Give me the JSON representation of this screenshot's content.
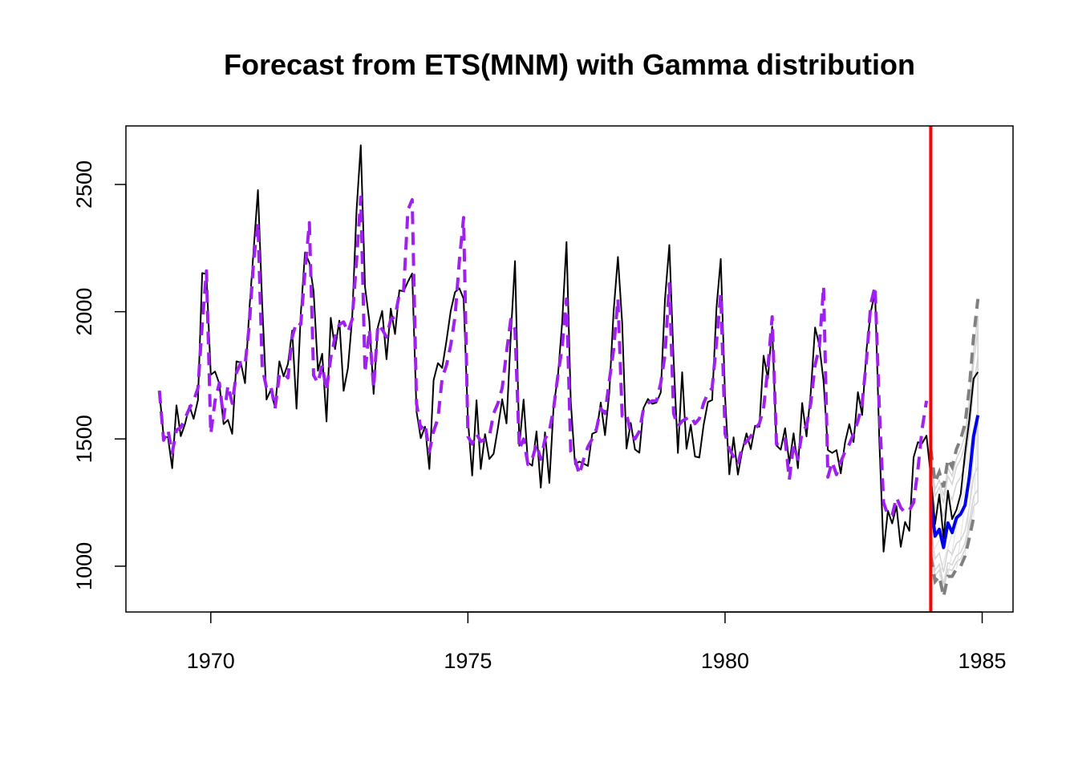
{
  "chart_data": {
    "type": "line",
    "title": "Forecast from ETS(MNM) with Gamma distribution",
    "xlabel": "",
    "ylabel": "",
    "xlim": [
      1968.35,
      1985.6
    ],
    "ylim": [
      820,
      2730
    ],
    "x_ticks": [
      1970,
      1975,
      1980,
      1985
    ],
    "y_ticks": [
      1000,
      1500,
      2000,
      2500
    ],
    "grid": false,
    "legend": "none",
    "start": 1969,
    "frequency": 12,
    "series": [
      {
        "role": "actuals",
        "color": "#000000",
        "values": [
          1687,
          1508,
          1507,
          1385,
          1632,
          1511,
          1559,
          1630,
          1579,
          1653,
          2152,
          2148,
          1752,
          1765,
          1717,
          1558,
          1575,
          1520,
          1805,
          1800,
          1719,
          2008,
          2242,
          2478,
          2030,
          1655,
          1693,
          1623,
          1805,
          1746,
          1795,
          1926,
          1619,
          1992,
          2233,
          2192,
          2080,
          1768,
          1835,
          1569,
          1976,
          1853,
          1965,
          1689,
          1778,
          1976,
          2397,
          2654,
          2097,
          1963,
          1677,
          1941,
          2003,
          1813,
          2012,
          1912,
          2084,
          2080,
          2118,
          2150,
          1608,
          1503,
          1548,
          1382,
          1731,
          1798,
          1779,
          1887,
          2004,
          2077,
          2092,
          2051,
          1577,
          1356,
          1652,
          1382,
          1519,
          1421,
          1442,
          1543,
          1656,
          1561,
          1905,
          2199,
          1473,
          1655,
          1407,
          1395,
          1530,
          1309,
          1526,
          1327,
          1627,
          1748,
          1958,
          2274,
          1648,
          1401,
          1411,
          1403,
          1394,
          1520,
          1528,
          1643,
          1515,
          1685,
          2000,
          2215,
          1956,
          1462,
          1563,
          1459,
          1446,
          1622,
          1657,
          1638,
          1643,
          1683,
          2050,
          2262,
          1813,
          1445,
          1762,
          1461,
          1556,
          1431,
          1427,
          1554,
          1645,
          1653,
          2016,
          2207,
          1665,
          1361,
          1506,
          1360,
          1453,
          1522,
          1460,
          1552,
          1548,
          1827,
          1737,
          1941,
          1474,
          1458,
          1542,
          1404,
          1522,
          1385,
          1641,
          1510,
          1681,
          1938,
          1868,
          1726,
          1456,
          1445,
          1456,
          1365,
          1487,
          1558,
          1488,
          1684,
          1594,
          1850,
          1998,
          2079,
          1494,
          1057,
          1218,
          1168,
          1236,
          1076,
          1174,
          1139,
          1427,
          1487,
          1483,
          1513,
          1357,
          1165,
          1282,
          1110,
          1297,
          1185,
          1222,
          1284,
          1444,
          1575,
          1737,
          1763
        ]
      },
      {
        "role": "fitted",
        "color": "#a020f0",
        "values": [
          1690,
          1495,
          1535,
          1445,
          1535,
          1545,
          1580,
          1620,
          1650,
          1700,
          1950,
          2160,
          1520,
          1650,
          1720,
          1580,
          1710,
          1640,
          1760,
          1800,
          1790,
          1950,
          2200,
          2350,
          1780,
          1700,
          1710,
          1620,
          1750,
          1760,
          1740,
          1900,
          1960,
          1950,
          2160,
          2350,
          1750,
          1720,
          1790,
          1690,
          1820,
          1900,
          1950,
          1960,
          1920,
          1970,
          2200,
          2450,
          1760,
          1930,
          1700,
          1950,
          1930,
          1900,
          1970,
          1980,
          2070,
          2080,
          2400,
          2440,
          1640,
          1540,
          1560,
          1450,
          1530,
          1580,
          1740,
          1790,
          1870,
          1980,
          2200,
          2370,
          1510,
          1480,
          1520,
          1490,
          1500,
          1510,
          1600,
          1640,
          1700,
          1840,
          1970,
          1930,
          1460,
          1500,
          1400,
          1420,
          1480,
          1420,
          1500,
          1530,
          1620,
          1750,
          1860,
          2050,
          1450,
          1420,
          1360,
          1420,
          1470,
          1500,
          1540,
          1620,
          1600,
          1730,
          1850,
          2050,
          1590,
          1600,
          1520,
          1500,
          1530,
          1620,
          1640,
          1650,
          1650,
          1720,
          1830,
          2110,
          1600,
          1550,
          1570,
          1580,
          1590,
          1560,
          1580,
          1640,
          1680,
          1700,
          1880,
          2070,
          1520,
          1460,
          1430,
          1400,
          1470,
          1490,
          1510,
          1540,
          1560,
          1620,
          1780,
          1980,
          1480,
          1480,
          1500,
          1340,
          1480,
          1420,
          1530,
          1550,
          1640,
          1790,
          1860,
          2100,
          1350,
          1410,
          1360,
          1410,
          1450,
          1480,
          1520,
          1570,
          1640,
          1810,
          2030,
          2100,
          1620,
          1250,
          1200,
          1200,
          1270,
          1230,
          1210,
          1220,
          1250,
          1380,
          1540,
          1650
        ]
      },
      {
        "role": "forecast",
        "color": "#0000ee",
        "values": [
          1262,
          1118,
          1145,
          1073,
          1170,
          1132,
          1190,
          1205,
          1240,
          1350,
          1510,
          1593
        ]
      },
      {
        "role": "upper-outer",
        "color": "#808080",
        "values": [
          1460,
          1330,
          1370,
          1310,
          1420,
          1390,
          1460,
          1500,
          1560,
          1700,
          1900,
          2050
        ]
      },
      {
        "role": "lower-outer",
        "color": "#808080",
        "values": [
          1040,
          940,
          960,
          880,
          960,
          960,
          990,
          1000,
          1040,
          1110,
          1190,
          1195
        ]
      },
      {
        "role": "interval-bands",
        "color": "#d3d3d3",
        "levels": [
          {
            "upper": [
              1355,
              1225,
              1257,
              1191,
              1295,
              1260,
              1325,
              1350,
              1400,
              1525,
              1705,
              1822
            ],
            "lower": [
              1151,
              1029,
              1052,
              976,
              1065,
              1046,
              1090,
              1102,
              1140,
              1230,
              1350,
              1394
            ]
          },
          {
            "upper": [
              1405,
              1275,
              1310,
              1247,
              1354,
              1322,
              1389,
              1422,
              1476,
              1609,
              1798,
              1930
            ],
            "lower": [
              1098,
              984,
              1008,
              929,
              1014,
              1005,
              1042,
              1054,
              1092,
              1172,
              1274,
              1301
            ]
          },
          {
            "upper": [
              1432,
              1302,
              1338,
              1277,
              1386,
              1354,
              1423,
              1459,
              1516,
              1652,
              1846,
              1984
            ],
            "lower": [
              1070,
              962,
              985,
              905,
              988,
              983,
              1017,
              1028,
              1067,
              1142,
              1235,
              1252
            ]
          }
        ]
      }
    ],
    "annotations": [
      {
        "type": "vline",
        "x": 1984.0,
        "color": "#ff0000"
      }
    ]
  }
}
